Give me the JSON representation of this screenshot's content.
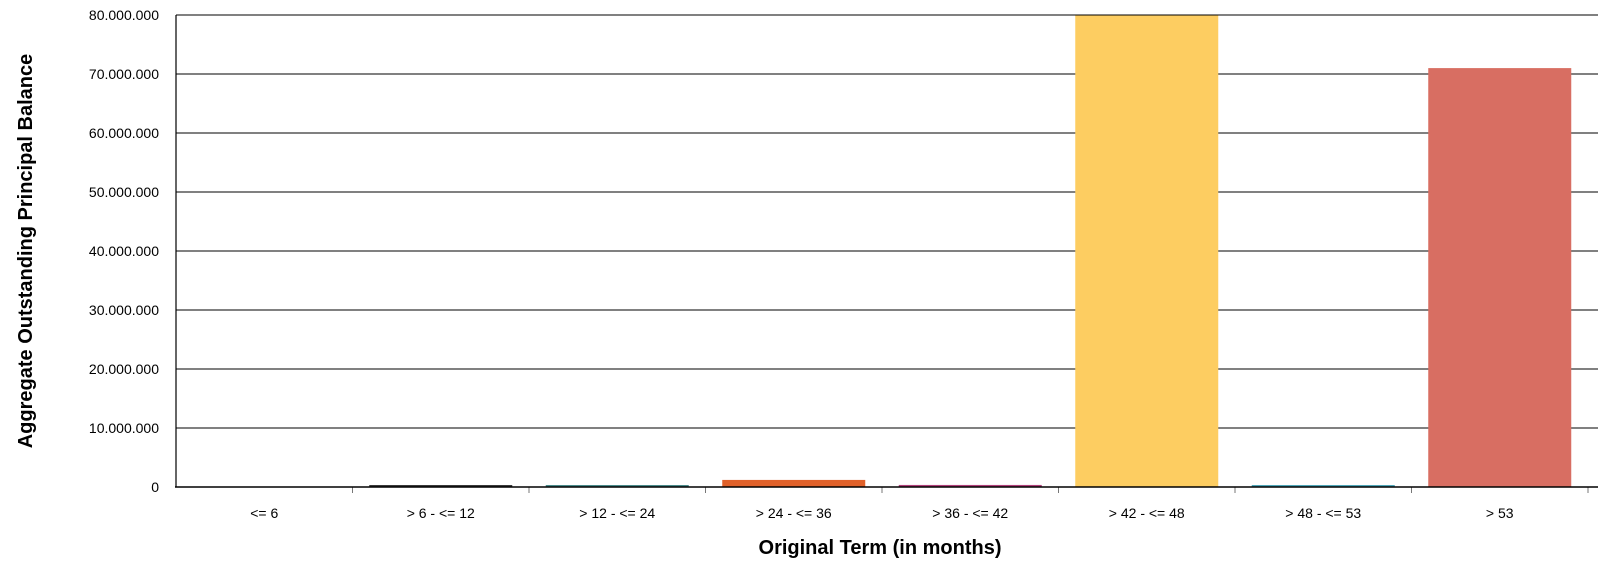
{
  "chart_data": {
    "type": "bar",
    "xlabel": "Original Term (in months)",
    "ylabel": "Aggregate Outstanding Principal Balance",
    "categories": [
      "<= 6",
      "> 6 - <= 12",
      "> 12 - <= 24",
      "> 24 - <= 36",
      "> 36 - <= 42",
      "> 42 - <= 48",
      "> 48 - <= 53",
      "> 53"
    ],
    "values": [
      0,
      50000,
      150000,
      1200000,
      350000,
      80000000,
      150000,
      71000000
    ],
    "colors": [
      "#1f1f1f",
      "#3a3a3a",
      "#4a8a8a",
      "#e0612a",
      "#b0407a",
      "#fdcd61",
      "#4fa6b8",
      "#d86e62"
    ],
    "ylim": [
      0,
      80000000
    ],
    "yticks": [
      0,
      10000000,
      20000000,
      30000000,
      40000000,
      50000000,
      60000000,
      70000000,
      80000000
    ],
    "ytick_labels": [
      "0",
      "10.000.000",
      "20.000.000",
      "30.000.000",
      "40.000.000",
      "50.000.000",
      "60.000.000",
      "70.000.000",
      "80.000.000"
    ],
    "grid": true,
    "legend": "none"
  }
}
